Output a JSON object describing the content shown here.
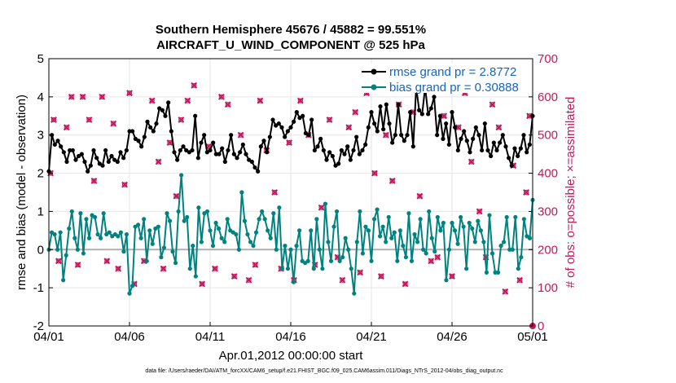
{
  "chart_data": {
    "type": "line",
    "title": [
      "Southern Hemisphere 45676 / 45882 = 99.551%",
      "AIRCRAFT_U_WIND_COMPONENT @ 525 hPa"
    ],
    "xlabel": "Apr.01,2012 00:00:00 start",
    "ylabel_left": "rmse and bias (model - observation)",
    "ylabel_right": "# of obs: o=possible; ×=assimilated",
    "xlim": [
      0,
      30
    ],
    "ylim_left": [
      -2,
      5
    ],
    "ylim_right": [
      0,
      700
    ],
    "xticks": [
      0,
      5,
      10,
      15,
      20,
      25,
      30
    ],
    "xtick_labels": [
      "04/01",
      "04/06",
      "04/11",
      "04/16",
      "04/21",
      "04/26",
      "05/01"
    ],
    "yticks_left": [
      -2,
      -1,
      0,
      1,
      2,
      3,
      4,
      5
    ],
    "yticks_right": [
      0,
      100,
      200,
      300,
      400,
      500,
      600,
      700
    ],
    "legend_position": "top-right",
    "footer": "data file: /Users/raeder/DAI/ATM_forcXX/CAM6_setup/f.e21.FHIST_BGC.f09_025.CAM6assim.011/Diags_NTrS_2012-04/obs_diag_output.nc",
    "colors": {
      "rmse": "#000000",
      "bias": "#00827f",
      "obs": "#c2185b",
      "legend_text": "#1565c0",
      "zero_line": "#b0b0b0"
    },
    "series": [
      {
        "name": "rmse grand pr = 2.8772",
        "axis": "left",
        "values": [
          2.05,
          3.0,
          2.75,
          2.85,
          2.7,
          2.55,
          2.3,
          2.6,
          2.6,
          2.35,
          2.45,
          2.5,
          2.3,
          2.05,
          2.2,
          2.6,
          2.4,
          2.25,
          2.2,
          2.6,
          2.3,
          2.45,
          2.35,
          2.3,
          2.55,
          2.4,
          2.6,
          3.1,
          3.1,
          2.9,
          2.85,
          2.7,
          2.95,
          3.35,
          3.2,
          3.1,
          3.3,
          3.7,
          3.65,
          3.5,
          3.85,
          3.1,
          2.55,
          2.35,
          2.6,
          2.7,
          2.6,
          2.55,
          2.6,
          3.5,
          2.4,
          2.8,
          3.0,
          2.55,
          2.6,
          2.8,
          2.5,
          2.5,
          2.65,
          2.3,
          2.6,
          3.0,
          2.5,
          2.4,
          2.55,
          2.75,
          2.5,
          2.35,
          2.3,
          2.15,
          2.05,
          2.7,
          2.85,
          2.55,
          2.95,
          3.4,
          3.25,
          3.3,
          3.2,
          2.95,
          3.1,
          3.2,
          3.35,
          3.6,
          3.45,
          3.5,
          3.05,
          3.0,
          3.4,
          2.6,
          2.7,
          2.9,
          2.6,
          2.35,
          2.55,
          2.45,
          2.2,
          2.25,
          2.6,
          2.5,
          2.7,
          2.35,
          2.6,
          2.95,
          2.5,
          2.6,
          2.75,
          3.2,
          3.6,
          3.3,
          3.1,
          3.75,
          3.15,
          3.8,
          3.3,
          2.8,
          3.0,
          3.8,
          3.0,
          2.85,
          3.0,
          3.6,
          2.7,
          4.25,
          3.65,
          3.55,
          4.25,
          3.55,
          3.7,
          4.0,
          3.0,
          3.5,
          2.9,
          3.3,
          2.75,
          3.6,
          3.2,
          2.6,
          2.9,
          3.1,
          2.85,
          2.55,
          2.9,
          3.2,
          3.0,
          2.6,
          3.3,
          2.6,
          2.45,
          2.8,
          2.6,
          2.8,
          3.0,
          2.7,
          2.4,
          2.2,
          2.65,
          2.45,
          2.65,
          3.0,
          2.55,
          2.75,
          3.5
        ]
      },
      {
        "name": "bias grand pr = 0.30888",
        "axis": "left",
        "values": [
          0.0,
          0.45,
          0.4,
          0.0,
          0.45,
          -0.8,
          -0.15,
          0.55,
          1.0,
          0.3,
          0.0,
          0.95,
          -0.1,
          0.8,
          0.3,
          0.9,
          0.85,
          0.4,
          0.3,
          0.95,
          0.4,
          0.45,
          0.35,
          0.4,
          0.35,
          0.45,
          -0.05,
          0.4,
          -1.15,
          -0.95,
          0.6,
          0.65,
          0.3,
          0.8,
          -0.3,
          0.5,
          0.15,
          0.55,
          0.6,
          -0.2,
          0.05,
          0.95,
          0.75,
          -0.05,
          -0.35,
          1.0,
          1.95,
          0.75,
          0.85,
          -0.5,
          0.1,
          -0.7,
          1.1,
          0.2,
          0.95,
          1.0,
          0.5,
          0.1,
          0.7,
          0.55,
          0.3,
          0.2,
          0.8,
          0.5,
          0.45,
          0.4,
          0.0,
          1.5,
          0.75,
          0.4,
          0.2,
          0.1,
          0.45,
          0.8,
          1.0,
          0.8,
          0.5,
          0.3,
          0.95,
          0.0,
          1.1,
          -0.5,
          0.1,
          -0.5,
          0.0,
          -0.85,
          0.1,
          0.5,
          -0.3,
          -0.35,
          -0.3,
          0.5,
          -0.5,
          0.8,
          0.0,
          -0.5,
          1.2,
          0.2,
          -0.3,
          0.6,
          1.0,
          -0.3,
          -0.2,
          0.3,
          0.0,
          -0.5,
          -1.15,
          0.2,
          1.0,
          -0.1,
          0.6,
          0.5,
          -0.3,
          0.8,
          1.05,
          0.35,
          0.6,
          0.2,
          0.85,
          0.3,
          0.45,
          -0.3,
          0.5,
          0.1,
          -0.2,
          0.95,
          -0.3,
          0.4,
          0.2,
          0.8,
          0.0,
          -0.1,
          1.0,
          0.3,
          -0.05,
          0.85,
          0.5,
          0.7,
          -0.8,
          0.0,
          0.7,
          0.5,
          0.15,
          0.85,
          0.6,
          -0.5,
          0.7,
          0.55,
          0.2,
          0.75,
          0.5,
          0.2,
          -0.6,
          0.9,
          -0.1,
          -0.6,
          -0.6,
          0.1,
          0.2,
          0.85,
          0.0,
          0.0,
          0.85,
          -0.5,
          -0.2,
          0.8,
          0.35,
          0.3,
          1.3
        ]
      },
      {
        "name": "obs possible",
        "axis": "right",
        "x": [
          0.1,
          0.3,
          0.6,
          1.1,
          1.4,
          1.8,
          2.1,
          2.5,
          2.8,
          3.3,
          3.6,
          4.0,
          4.3,
          4.7,
          5.0,
          5.3,
          5.9,
          6.4,
          6.8,
          7.1,
          7.5,
          7.9,
          8.2,
          8.6,
          9.0,
          9.5,
          9.9,
          10.3,
          10.7,
          11.1,
          11.5,
          11.9,
          12.4,
          12.8,
          13.1,
          13.5,
          14.0,
          14.4,
          14.9,
          15.2,
          15.6,
          16.1,
          16.5,
          16.9,
          17.4,
          17.9,
          18.2,
          18.6,
          19.0,
          19.3,
          19.7,
          20.2,
          20.6,
          20.9,
          21.3,
          21.7,
          22.1,
          22.6,
          23.0,
          23.4,
          23.7,
          24.1,
          24.5,
          25.0,
          25.4,
          25.8,
          26.2,
          26.7,
          27.1,
          27.5,
          27.9,
          28.3,
          28.8,
          29.2,
          29.6,
          29.8
        ],
        "values": [
          400,
          540,
          170,
          520,
          600,
          160,
          600,
          540,
          380,
          600,
          170,
          530,
          150,
          370,
          610,
          110,
          170,
          590,
          430,
          150,
          480,
          340,
          540,
          590,
          630,
          110,
          470,
          150,
          600,
          580,
          130,
          500,
          120,
          160,
          590,
          460,
          350,
          150,
          480,
          120,
          590,
          500,
          160,
          310,
          540,
          180,
          120,
          520,
          560,
          140,
          610,
          400,
          130,
          500,
          380,
          580,
          110,
          560,
          340,
          620,
          170,
          180,
          550,
          130,
          520,
          610,
          430,
          300,
          180,
          580,
          520,
          90,
          420,
          120,
          350,
          550
        ]
      },
      {
        "name": "obs assimilated",
        "axis": "right",
        "x": [
          0.1,
          0.3,
          0.6,
          1.1,
          1.4,
          1.8,
          2.1,
          2.5,
          2.8,
          3.3,
          3.6,
          4.0,
          4.3,
          4.7,
          5.0,
          5.3,
          5.9,
          6.4,
          6.8,
          7.1,
          7.5,
          7.9,
          8.2,
          8.6,
          9.0,
          9.5,
          9.9,
          10.3,
          10.7,
          11.1,
          11.5,
          11.9,
          12.4,
          12.8,
          13.1,
          13.5,
          14.0,
          14.4,
          14.9,
          15.2,
          15.6,
          16.1,
          16.5,
          16.9,
          17.4,
          17.9,
          18.2,
          18.6,
          19.0,
          19.3,
          19.7,
          20.2,
          20.6,
          20.9,
          21.3,
          21.7,
          22.1,
          22.6,
          23.0,
          23.4,
          23.7,
          24.1,
          24.5,
          25.0,
          25.4,
          25.8,
          26.2,
          26.7,
          27.1,
          27.5,
          27.9,
          28.3,
          28.8,
          29.2,
          29.6,
          29.8
        ],
        "values": [
          400,
          540,
          170,
          520,
          600,
          160,
          600,
          540,
          380,
          600,
          170,
          530,
          150,
          370,
          610,
          110,
          170,
          590,
          430,
          150,
          480,
          340,
          540,
          590,
          630,
          110,
          470,
          150,
          600,
          580,
          130,
          500,
          120,
          160,
          590,
          460,
          350,
          150,
          480,
          120,
          590,
          500,
          160,
          310,
          540,
          180,
          120,
          520,
          560,
          140,
          610,
          400,
          130,
          500,
          380,
          580,
          110,
          560,
          340,
          620,
          170,
          180,
          550,
          130,
          520,
          610,
          430,
          300,
          180,
          580,
          520,
          90,
          420,
          120,
          350,
          550
        ]
      }
    ]
  }
}
